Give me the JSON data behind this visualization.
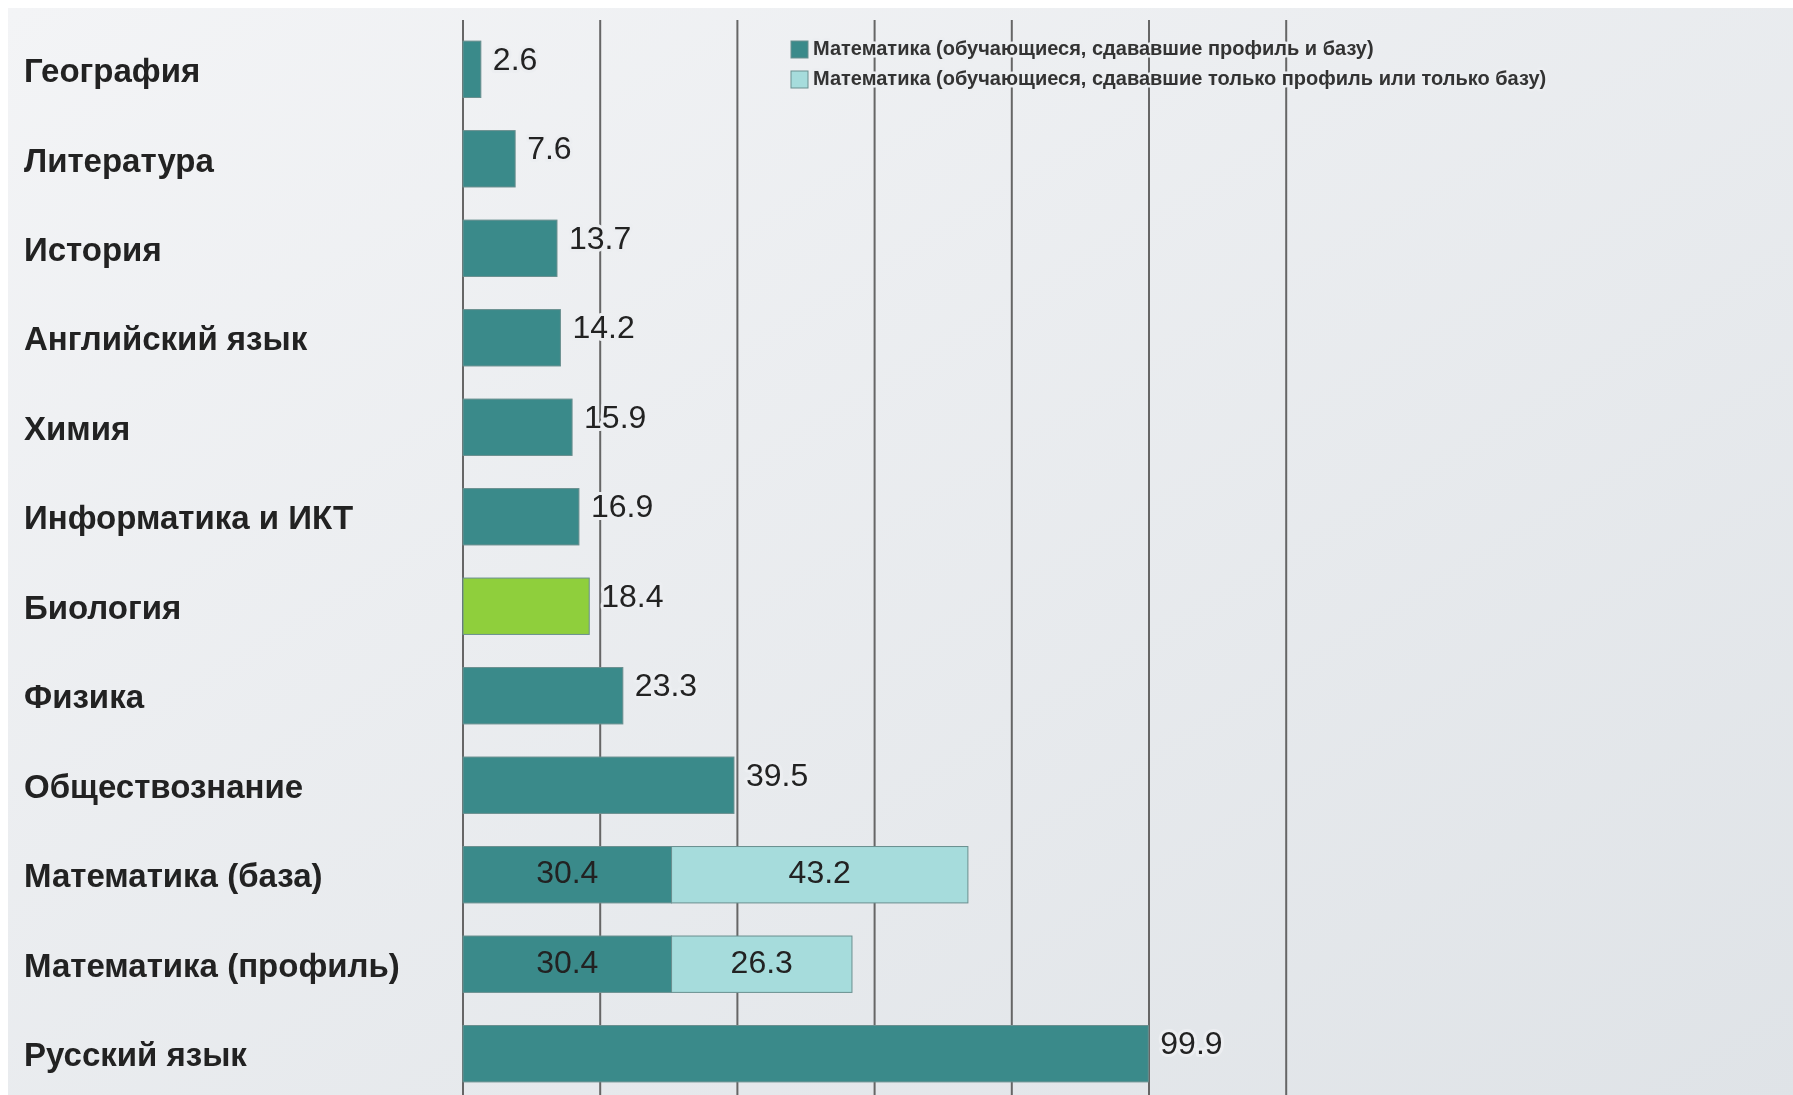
{
  "chart_data": {
    "type": "bar",
    "orientation": "horizontal",
    "stacked": true,
    "categories": [
      "География",
      "Литература",
      "История",
      "Английский язык",
      "Химия",
      "Информатика и ИКТ",
      "Биология",
      "Физика",
      "Обществознание",
      "Математика (база)",
      "Математика (профиль)",
      "Русский язык"
    ],
    "series": [
      {
        "name": "Математика (обучающиеся, сдававшие профиль и базу)",
        "color": "#3a8a8a",
        "colors": [
          "#3a8a8a",
          "#3a8a8a",
          "#3a8a8a",
          "#3a8a8a",
          "#3a8a8a",
          "#3a8a8a",
          "#8fcf3c",
          "#3a8a8a",
          "#3a8a8a",
          "#3a8a8a",
          "#3a8a8a",
          "#3a8a8a"
        ],
        "values": [
          2.6,
          7.6,
          13.7,
          14.2,
          15.9,
          16.9,
          18.4,
          23.3,
          39.5,
          30.4,
          30.4,
          99.9
        ]
      },
      {
        "name": "Математика (обучающиеся, сдававшие только профиль или только базу)",
        "color": "#a6dcdc",
        "values": [
          null,
          null,
          null,
          null,
          null,
          null,
          null,
          null,
          null,
          43.2,
          26.3,
          null
        ]
      }
    ],
    "xlim": [
      0,
      120
    ],
    "xticks": [
      {
        "value": 0,
        "label": null
      },
      {
        "value": 20,
        "label": null
      },
      {
        "value": 40,
        "label": null
      },
      {
        "value": 60,
        "label": null
      },
      {
        "value": 80,
        "label": null
      },
      {
        "value": 100,
        "label": null
      },
      {
        "value": 120,
        "label": null
      }
    ],
    "tick_labels": "y",
    "grid": "x",
    "legend": "top right",
    "data_labels": true
  }
}
